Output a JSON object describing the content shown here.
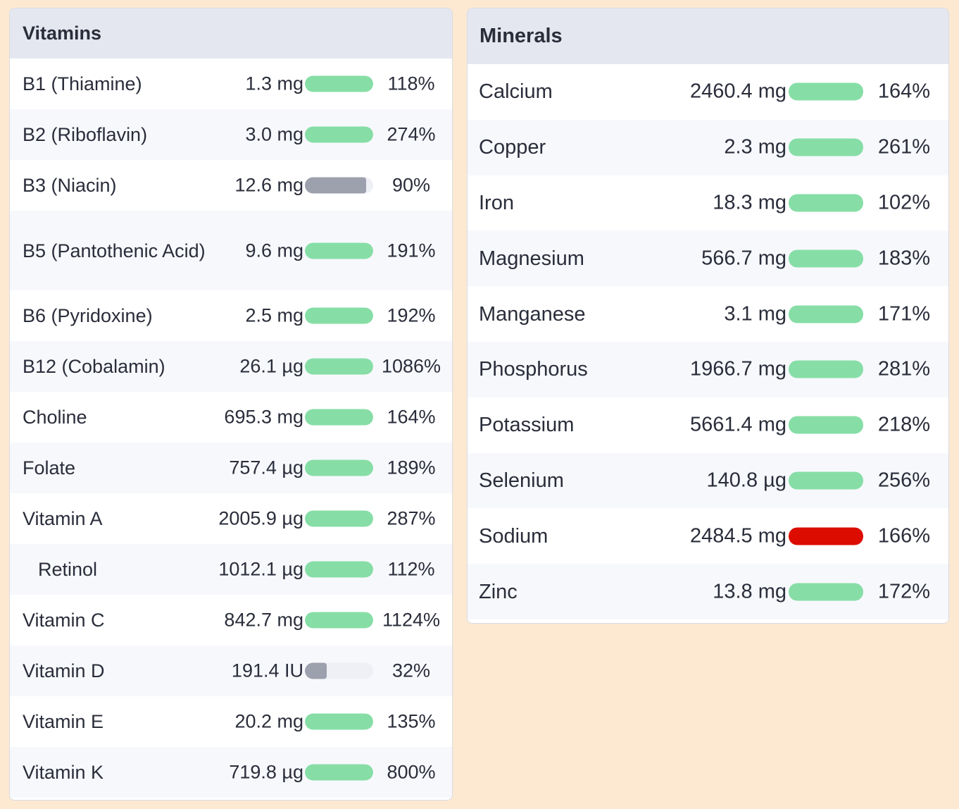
{
  "colors": {
    "background": "#fde9d2",
    "header": "#e4e7ef",
    "bar_ok": "#86dea6",
    "bar_low": "#9da0ad",
    "bar_high": "#dd0c00",
    "bar_track": "#eef0f6"
  },
  "vitamins": {
    "title": "Vitamins",
    "rows": [
      {
        "name": "B1 (Thiamine)",
        "amount": "1.3 mg",
        "percent": "118%",
        "fill": 100,
        "status": "ok"
      },
      {
        "name": "B2 (Riboflavin)",
        "amount": "3.0 mg",
        "percent": "274%",
        "fill": 100,
        "status": "ok"
      },
      {
        "name": "B3 (Niacin)",
        "amount": "12.6 mg",
        "percent": "90%",
        "fill": 90,
        "status": "low"
      },
      {
        "name": "B5 (Pantothenic Acid)",
        "amount": "9.6 mg",
        "percent": "191%",
        "fill": 100,
        "status": "ok"
      },
      {
        "name": "B6 (Pyridoxine)",
        "amount": "2.5 mg",
        "percent": "192%",
        "fill": 100,
        "status": "ok"
      },
      {
        "name": "B12 (Cobalamin)",
        "amount": "26.1 µg",
        "percent": "1086%",
        "fill": 100,
        "status": "ok"
      },
      {
        "name": "Choline",
        "amount": "695.3 mg",
        "percent": "164%",
        "fill": 100,
        "status": "ok"
      },
      {
        "name": "Folate",
        "amount": "757.4 µg",
        "percent": "189%",
        "fill": 100,
        "status": "ok"
      },
      {
        "name": "Vitamin A",
        "amount": "2005.9 µg",
        "percent": "287%",
        "fill": 100,
        "status": "ok"
      },
      {
        "name": "Retinol",
        "amount": "1012.1 µg",
        "percent": "112%",
        "fill": 100,
        "status": "ok",
        "sub": true
      },
      {
        "name": "Vitamin C",
        "amount": "842.7 mg",
        "percent": "1124%",
        "fill": 100,
        "status": "ok"
      },
      {
        "name": "Vitamin D",
        "amount": "191.4 IU",
        "percent": "32%",
        "fill": 32,
        "status": "low"
      },
      {
        "name": "Vitamin E",
        "amount": "20.2 mg",
        "percent": "135%",
        "fill": 100,
        "status": "ok"
      },
      {
        "name": "Vitamin K",
        "amount": "719.8 µg",
        "percent": "800%",
        "fill": 100,
        "status": "ok"
      }
    ]
  },
  "minerals": {
    "title": "Minerals",
    "rows": [
      {
        "name": "Calcium",
        "amount": "2460.4 mg",
        "percent": "164%",
        "fill": 100,
        "status": "ok"
      },
      {
        "name": "Copper",
        "amount": "2.3 mg",
        "percent": "261%",
        "fill": 100,
        "status": "ok"
      },
      {
        "name": "Iron",
        "amount": "18.3 mg",
        "percent": "102%",
        "fill": 100,
        "status": "ok"
      },
      {
        "name": "Magnesium",
        "amount": "566.7 mg",
        "percent": "183%",
        "fill": 100,
        "status": "ok"
      },
      {
        "name": "Manganese",
        "amount": "3.1 mg",
        "percent": "171%",
        "fill": 100,
        "status": "ok"
      },
      {
        "name": "Phosphorus",
        "amount": "1966.7 mg",
        "percent": "281%",
        "fill": 100,
        "status": "ok"
      },
      {
        "name": "Potassium",
        "amount": "5661.4 mg",
        "percent": "218%",
        "fill": 100,
        "status": "ok"
      },
      {
        "name": "Selenium",
        "amount": "140.8 µg",
        "percent": "256%",
        "fill": 100,
        "status": "ok"
      },
      {
        "name": "Sodium",
        "amount": "2484.5 mg",
        "percent": "166%",
        "fill": 100,
        "status": "high"
      },
      {
        "name": "Zinc",
        "amount": "13.8 mg",
        "percent": "172%",
        "fill": 100,
        "status": "ok"
      }
    ]
  }
}
